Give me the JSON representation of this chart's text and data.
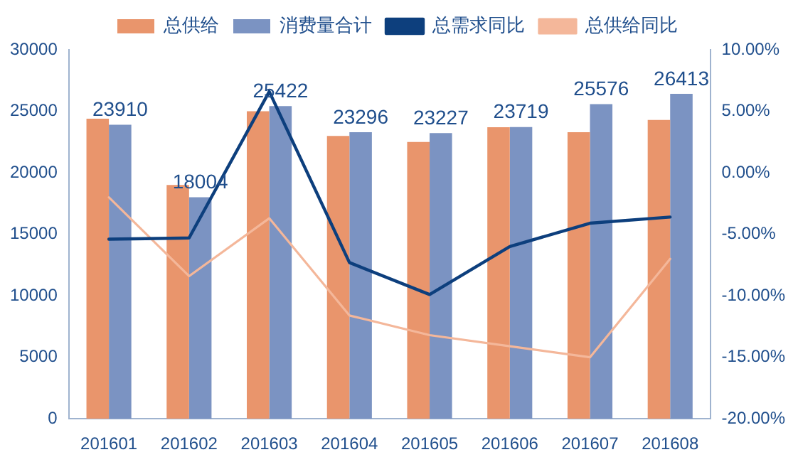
{
  "chart_data": {
    "type": "bar",
    "categories": [
      "201601",
      "201602",
      "201603",
      "201604",
      "201605",
      "201606",
      "201607",
      "201608"
    ],
    "series": [
      {
        "name": "总供给",
        "color": "#e9956c",
        "values": [
          24400,
          19000,
          25000,
          23000,
          22500,
          23700,
          23300,
          24300
        ]
      },
      {
        "name": "消费量合计",
        "color": "#7b93c2",
        "values": [
          23910,
          18004,
          25422,
          23296,
          23227,
          23719,
          25576,
          26413
        ],
        "value_labels": [
          "23910",
          "18004",
          "25422",
          "23296",
          "23227",
          "23719",
          "25576",
          "26413"
        ]
      },
      {
        "name": "总需求同比",
        "type": "line",
        "axis": "y2",
        "color": "#0d3f7d",
        "values": [
          -5.4,
          -5.3,
          6.6,
          -7.3,
          -9.9,
          -6.0,
          -4.1,
          -3.6
        ]
      },
      {
        "name": "总供给同比",
        "type": "line",
        "axis": "y2",
        "color": "#f4b79a",
        "values": [
          -2.0,
          -8.4,
          -3.7,
          -11.6,
          -13.2,
          -14.1,
          -15.0,
          -7.0
        ]
      }
    ],
    "ylim": [
      0,
      30000
    ],
    "yticks": [
      0,
      5000,
      10000,
      15000,
      20000,
      25000,
      30000
    ],
    "y2lim": [
      -20,
      10
    ],
    "y2ticks": [
      {
        "value": -20,
        "label": "-20.00%"
      },
      {
        "value": -15,
        "label": "-15.00%"
      },
      {
        "value": -10,
        "label": "-10.00%"
      },
      {
        "value": -5,
        "label": "-5.00%"
      },
      {
        "value": 0,
        "label": "0.00%"
      },
      {
        "value": 5,
        "label": "5.00%"
      },
      {
        "value": 10,
        "label": "10.00%"
      }
    ],
    "legend": "top",
    "grid": false,
    "marker": "none"
  }
}
